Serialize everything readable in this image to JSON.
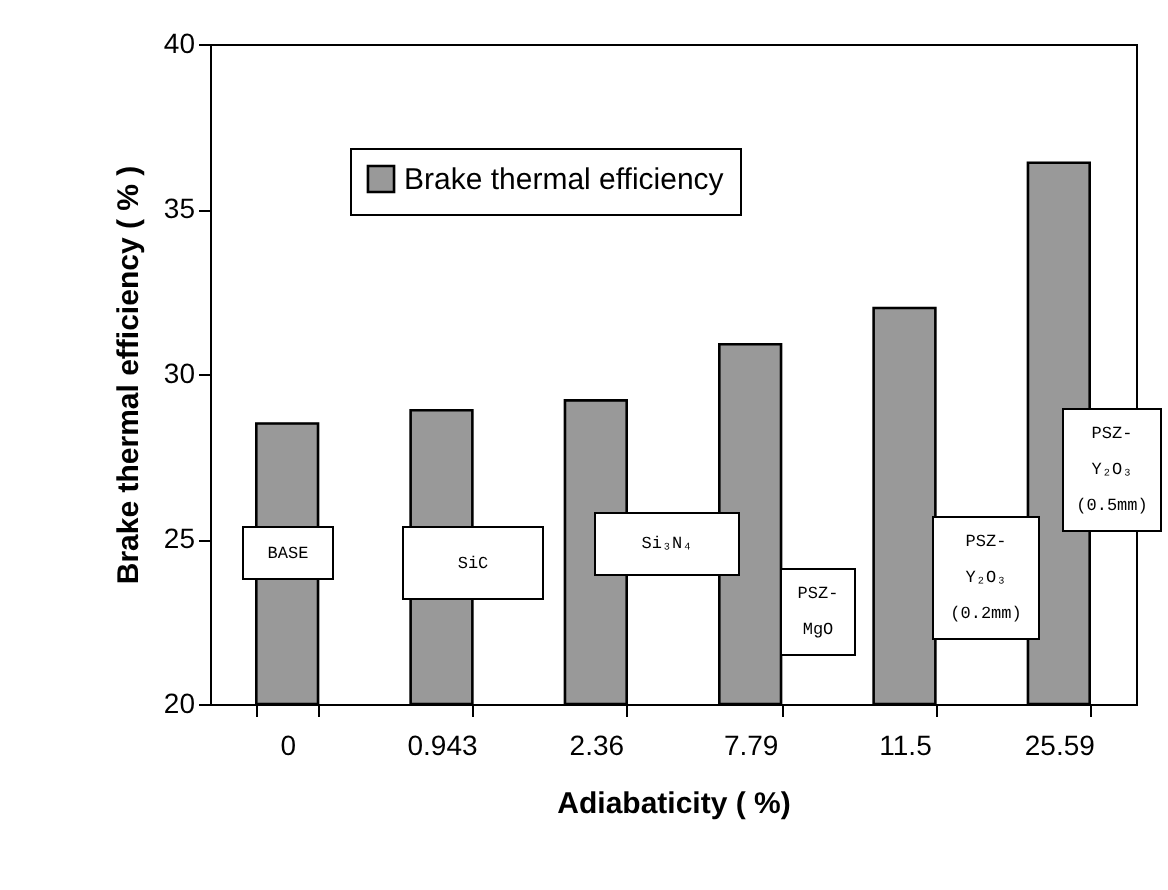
{
  "chart_data": {
    "type": "bar",
    "xlabel": "Adiabaticity ( %)",
    "ylabel": "Brake thermal efficiency ( % )",
    "categories": [
      "0",
      "0.943",
      "2.36",
      "7.79",
      "11.5",
      "25.59"
    ],
    "series": [
      {
        "name": "Brake thermal efficiency",
        "color": "#999999",
        "values": [
          28.5,
          28.9,
          29.2,
          30.9,
          32.0,
          36.4
        ]
      }
    ],
    "ylim": [
      20,
      40
    ],
    "yticks": [
      20,
      25,
      30,
      35,
      40
    ],
    "grid": false,
    "legend": "top",
    "annotations": [
      "BASE",
      "SiC",
      "Si₃N₄",
      "PSZ-MgO",
      "PSZ-Y₂O₃ (0.2mm)",
      "PSZ-Y₂O₃ (0.5mm)"
    ]
  }
}
